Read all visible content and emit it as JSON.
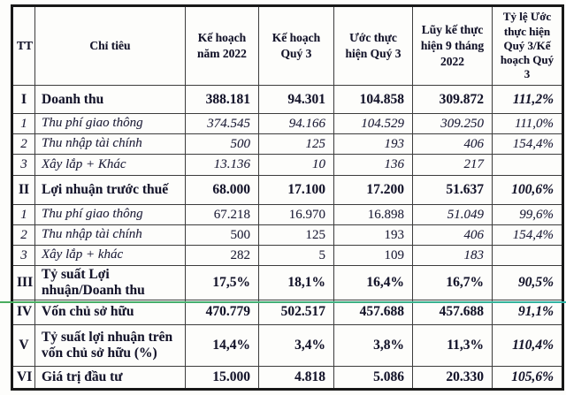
{
  "table": {
    "columns": [
      {
        "label": "TT"
      },
      {
        "label": "Chỉ tiêu"
      },
      {
        "label": "Kế hoạch năm 2022"
      },
      {
        "label": "Kế hoạch Quý 3"
      },
      {
        "label": "Ước thực hiện Quý 3"
      },
      {
        "label": "Lũy kế thực hiện 9 tháng 2022"
      },
      {
        "label": "Tỷ lệ Ước thực hiện Quý 3/Kế hoạch Quý 3"
      }
    ],
    "rows": [
      {
        "tt": "I",
        "label": "Doanh thu",
        "style": "main",
        "values": [
          "388.181",
          "94.301",
          "104.858",
          "309.872",
          "111,2%"
        ],
        "italics": [
          false,
          false,
          false,
          false,
          true
        ]
      },
      {
        "tt": "1",
        "label": "Thu phí giao thông",
        "style": "sub",
        "values": [
          "374.545",
          "94.166",
          "104.529",
          "309.250",
          "111,0%"
        ],
        "italics": [
          true,
          true,
          true,
          true,
          true
        ]
      },
      {
        "tt": "2",
        "label": "Thu nhập tài chính",
        "style": "sub",
        "values": [
          "500",
          "125",
          "193",
          "406",
          "154,4%"
        ],
        "italics": [
          true,
          true,
          true,
          true,
          true
        ]
      },
      {
        "tt": "3",
        "label": "Xây lắp + Khác",
        "style": "sub",
        "values": [
          "13.136",
          "10",
          "136",
          "217",
          ""
        ],
        "italics": [
          true,
          true,
          true,
          true,
          true
        ]
      },
      {
        "tt": "II",
        "label": "Lợi nhuận trước thuế",
        "style": "main",
        "values": [
          "68.000",
          "17.100",
          "17.200",
          "51.637",
          "100,6%"
        ],
        "italics": [
          false,
          false,
          false,
          false,
          true
        ]
      },
      {
        "tt": "1",
        "label": "Thu phí giao thông",
        "style": "sub",
        "values": [
          "67.218",
          "16.970",
          "16.898",
          "51.049",
          "99,6%"
        ],
        "italics": [
          false,
          false,
          false,
          true,
          true
        ]
      },
      {
        "tt": "2",
        "label": "Thu nhập tài chính",
        "style": "sub",
        "values": [
          "500",
          "125",
          "193",
          "406",
          "154,4%"
        ],
        "italics": [
          false,
          false,
          false,
          true,
          true
        ]
      },
      {
        "tt": "3",
        "label": "Xây lắp + khác",
        "style": "sub",
        "values": [
          "282",
          "5",
          "109",
          "183",
          ""
        ],
        "italics": [
          false,
          false,
          false,
          true,
          true
        ]
      },
      {
        "tt": "III",
        "label": "Tỷ suất Lợi nhuận/Doanh thu",
        "style": "main",
        "values": [
          "17,5%",
          "18,1%",
          "16,4%",
          "16,7%",
          "90,5%"
        ],
        "italics": [
          false,
          false,
          false,
          false,
          true
        ]
      },
      {
        "tt": "IV",
        "label": "Vốn chủ sở hữu",
        "style": "main",
        "values": [
          "470.779",
          "502.517",
          "457.688",
          "457.688",
          "91,1%"
        ],
        "italics": [
          false,
          false,
          false,
          false,
          true
        ]
      },
      {
        "tt": "V",
        "label": "Tỷ suất lợi nhuận trên vốn chủ sở hữu (%)",
        "style": "main",
        "values": [
          "14,4%",
          "3,4%",
          "3,8%",
          "11,3%",
          "110,4%"
        ],
        "italics": [
          false,
          false,
          false,
          false,
          true
        ]
      },
      {
        "tt": "VI",
        "label": "Giá trị đầu tư",
        "style": "main",
        "values": [
          "15.000",
          "4.818",
          "5.086",
          "20.330",
          "105,6%"
        ],
        "italics": [
          false,
          false,
          false,
          false,
          true
        ]
      }
    ]
  },
  "accent": {
    "divider_green": "#49ad5e",
    "divider_teal": "#2fb3a4",
    "ink": "#1c1c30"
  }
}
